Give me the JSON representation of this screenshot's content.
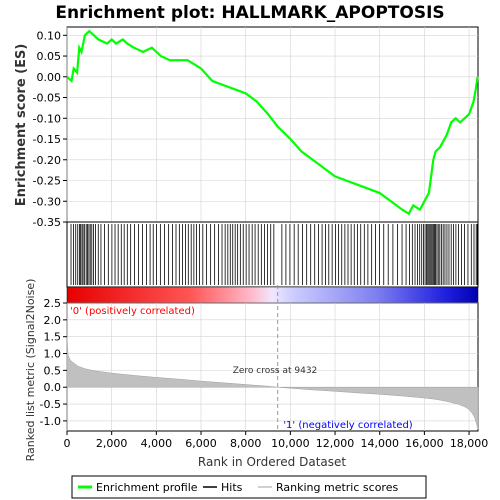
{
  "title": "Enrichment plot: HALLMARK_APOPTOSIS",
  "colors": {
    "es_line": "#00ff00",
    "hits": "#000000",
    "metric_fill": "#c0c0c0",
    "pos_label": "#ff0000",
    "neg_label": "#0000ff",
    "grid": "#d3d3d3"
  },
  "labels": {
    "es_ylabel": "Enrichment score (ES)",
    "metric_ylabel": "Ranked list metric (Signal2Noise)",
    "xlabel": "Rank in Ordered Dataset",
    "pos_corr": "'0' (positively correlated)",
    "neg_corr": "'1' (negatively correlated)",
    "zero_cross": "Zero cross at 9432"
  },
  "legend": [
    {
      "name": "Enrichment profile",
      "swatch": "line-green"
    },
    {
      "name": "Hits",
      "swatch": "line-black"
    },
    {
      "name": "Ranking metric scores",
      "swatch": "line-gray"
    }
  ],
  "chart_data": {
    "type": "line",
    "n_genes": 18400,
    "zero_cross": 9432,
    "es_ylim": [
      -0.35,
      0.12
    ],
    "es_yticks": [
      "0.10",
      "0.05",
      "0.00",
      "-0.05",
      "-0.10",
      "-0.15",
      "-0.20",
      "-0.25",
      "-0.30",
      "-0.35"
    ],
    "metric_ylim": [
      -1.3,
      2.5
    ],
    "metric_yticks": [
      "2.5",
      "2.0",
      "1.5",
      "1.0",
      "0.5",
      "0.0",
      "-0.5",
      "-1.0"
    ],
    "xticks": [
      "0",
      "2,000",
      "4,000",
      "6,000",
      "8,000",
      "10,000",
      "12,000",
      "14,000",
      "16,000",
      "18,000"
    ],
    "xlim": [
      0,
      18400
    ],
    "es_profile": {
      "x": [
        0,
        200,
        300,
        450,
        550,
        650,
        800,
        1000,
        1200,
        1400,
        1800,
        2000,
        2200,
        2500,
        2700,
        3000,
        3400,
        3800,
        4200,
        4600,
        5000,
        5400,
        6000,
        6500,
        7000,
        7500,
        8000,
        8500,
        9000,
        9432,
        10000,
        10500,
        11000,
        11500,
        12000,
        12500,
        13000,
        13500,
        14000,
        14500,
        15000,
        15300,
        15500,
        15800,
        16000,
        16200,
        16400,
        16500,
        16700,
        17000,
        17200,
        17400,
        17600,
        17800,
        18000,
        18200,
        18300,
        18380
      ],
      "y": [
        0.0,
        -0.01,
        0.02,
        0.01,
        0.07,
        0.06,
        0.1,
        0.11,
        0.1,
        0.09,
        0.08,
        0.09,
        0.08,
        0.09,
        0.08,
        0.07,
        0.06,
        0.07,
        0.05,
        0.04,
        0.04,
        0.04,
        0.02,
        -0.01,
        -0.02,
        -0.03,
        -0.04,
        -0.06,
        -0.09,
        -0.12,
        -0.15,
        -0.18,
        -0.2,
        -0.22,
        -0.24,
        -0.25,
        -0.26,
        -0.27,
        -0.28,
        -0.3,
        -0.32,
        -0.33,
        -0.31,
        -0.32,
        -0.3,
        -0.28,
        -0.2,
        -0.18,
        -0.17,
        -0.14,
        -0.11,
        -0.1,
        -0.11,
        -0.1,
        -0.09,
        -0.06,
        -0.03,
        0.0
      ]
    },
    "hits": [
      [
        180,
        290,
        390,
        480,
        560,
        610,
        670,
        720,
        790,
        860,
        920,
        980,
        1040,
        1110,
        1190,
        1280,
        1400,
        1520,
        1680,
        1850,
        2010,
        2150,
        2290,
        2430,
        2560,
        2700,
        2850,
        3020,
        3200,
        3380,
        3560,
        3720,
        3860,
        4010,
        4180,
        4360,
        4550,
        4720,
        4880,
        5030,
        5170,
        5300,
        5430,
        5560,
        5680,
        5800,
        5930,
        6080,
        6250,
        6430,
        6610,
        6780,
        6940,
        7080,
        7200,
        7310,
        7420,
        7530,
        7640,
        7760,
        7890,
        8020,
        8150,
        8290,
        8420,
        8560,
        8700,
        8840,
        8980,
        9120,
        9260
      ],
      [
        9620,
        9800,
        9980,
        10170,
        10350,
        10540,
        10730,
        10910,
        11090,
        11260,
        11420,
        11570,
        11720,
        11870,
        12020,
        12160,
        12300,
        12440,
        12580,
        12720,
        12860,
        13000,
        13150,
        13310,
        13470,
        13640,
        13810,
        13990,
        14180,
        14380,
        14590,
        14800,
        15000,
        15180,
        15330,
        15460,
        15580,
        15690,
        15790,
        15880,
        15960,
        16030,
        16090,
        16150,
        16200,
        16250,
        16300,
        16350,
        16400,
        16450,
        16500,
        16560,
        16620,
        16690,
        16760,
        16840,
        16920,
        17010,
        17100,
        17200,
        17300,
        17410,
        17530,
        17660,
        17800,
        17950,
        18100,
        18220,
        18320,
        18370
      ]
    ],
    "metric": {
      "x": [
        0,
        50,
        150,
        300,
        500,
        800,
        1200,
        2000,
        3000,
        4000,
        5000,
        6000,
        7000,
        8000,
        9000,
        9432,
        10000,
        11000,
        12000,
        13000,
        14000,
        15000,
        16000,
        16500,
        17000,
        17500,
        17800,
        18000,
        18150,
        18250,
        18320,
        18380,
        18400
      ],
      "y": [
        1.5,
        0.95,
        0.8,
        0.72,
        0.62,
        0.55,
        0.49,
        0.42,
        0.35,
        0.29,
        0.24,
        0.18,
        0.13,
        0.08,
        0.03,
        0.0,
        -0.03,
        -0.08,
        -0.12,
        -0.17,
        -0.21,
        -0.26,
        -0.32,
        -0.36,
        -0.42,
        -0.5,
        -0.58,
        -0.66,
        -0.78,
        -0.9,
        -1.05,
        -1.2,
        -1.25
      ]
    }
  }
}
